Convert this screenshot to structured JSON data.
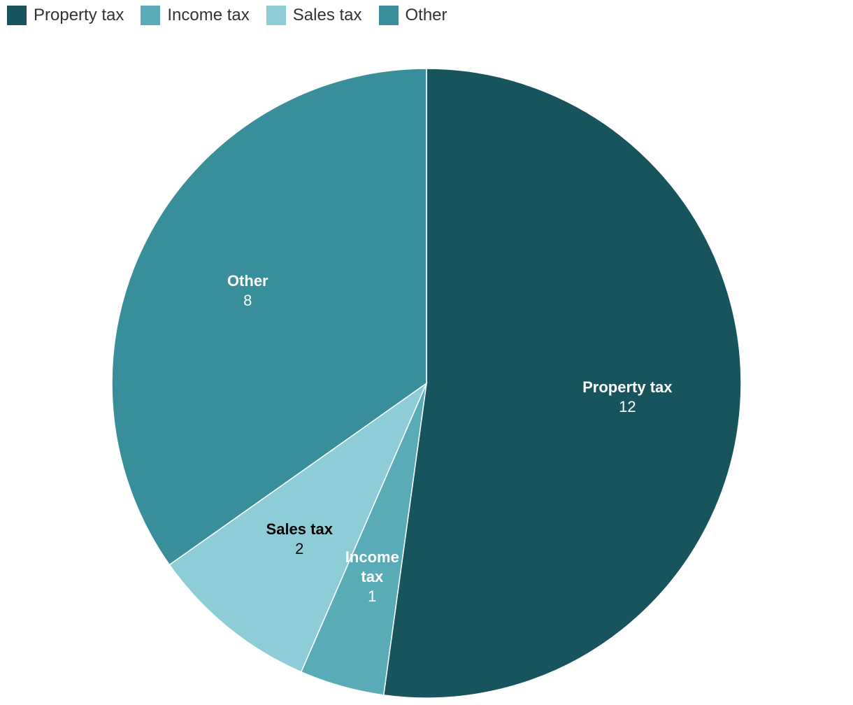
{
  "chart_data": {
    "type": "pie",
    "categories": [
      "Property tax",
      "Income tax",
      "Sales tax",
      "Other"
    ],
    "values": [
      12,
      1,
      2,
      8
    ],
    "colors": [
      "#17545e",
      "#5aabb8",
      "#8ecdd7",
      "#388e9a"
    ],
    "legend": "top-left"
  }
}
